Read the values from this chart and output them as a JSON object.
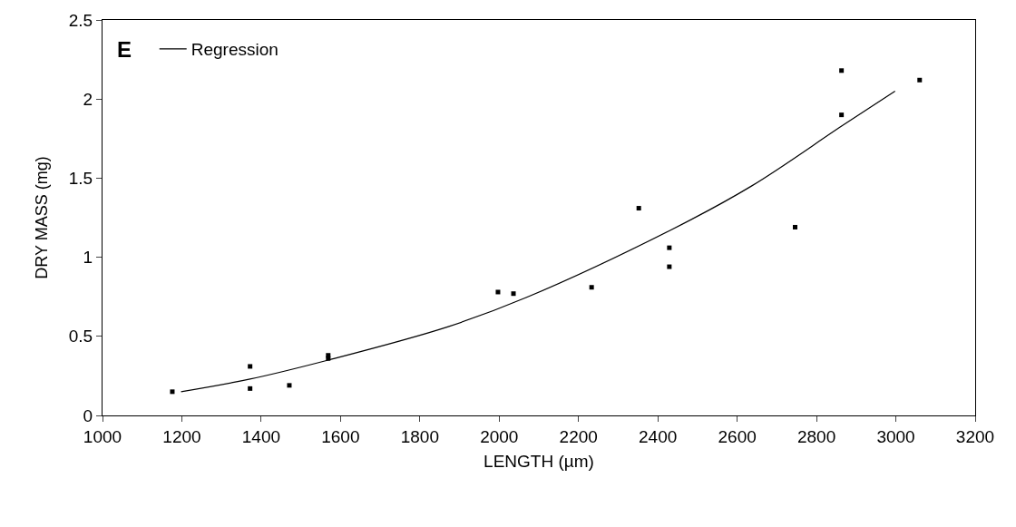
{
  "chart_data": {
    "type": "scatter",
    "xlabel": "LENGTH (µm)",
    "ylabel": "DRY MASS (mg)",
    "annotations": [
      "E"
    ],
    "xlim": [
      1000,
      3200
    ],
    "xticks": [
      1000,
      1200,
      1400,
      1600,
      1800,
      2000,
      2200,
      2400,
      2600,
      2800,
      3000,
      3200
    ],
    "ylim": [
      0,
      2.5
    ],
    "yticks": [
      0,
      0.5,
      1,
      1.5,
      2,
      2.5
    ],
    "legend": "top left",
    "series": [
      {
        "color": "#000000",
        "marker": "square",
        "x": [
          1176,
          1372,
          1372,
          1471,
          1569,
          1569,
          1997,
          2036,
          2233,
          2352,
          2429,
          2429,
          2746,
          2863,
          2863,
          3060
        ],
        "values": [
          0.15,
          0.31,
          0.17,
          0.19,
          0.36,
          0.38,
          0.78,
          0.77,
          0.81,
          1.31,
          1.06,
          0.94,
          1.19,
          2.18,
          1.9,
          2.12
        ]
      },
      {
        "type": "line",
        "name": "Regression",
        "color": "#000000",
        "line_style": "solid",
        "x": [
          1198,
          1372,
          1569,
          1870,
          2068,
          2431,
          2636,
          2864,
          2998
        ],
        "values": [
          0.15,
          0.23,
          0.35,
          0.56,
          0.745,
          1.17,
          1.45,
          1.83,
          2.05
        ]
      }
    ]
  }
}
